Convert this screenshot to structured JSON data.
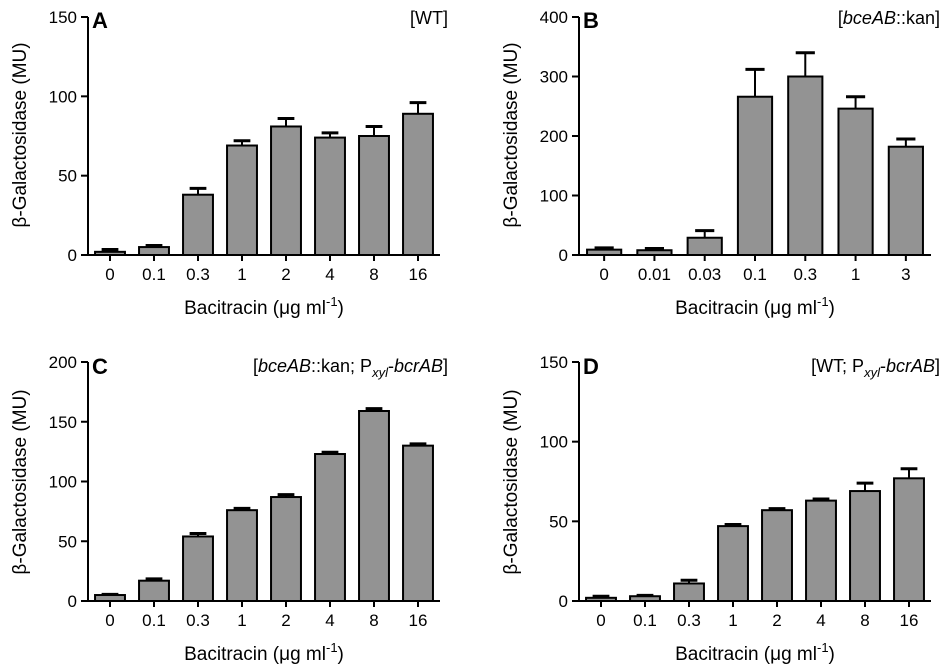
{
  "chart_data": [
    {
      "type": "bar",
      "panel": "A",
      "condition_label": "[WT]",
      "categories": [
        "0",
        "0.1",
        "0.3",
        "1",
        "2",
        "4",
        "8",
        "16"
      ],
      "values": [
        2,
        5,
        38,
        69,
        81,
        74,
        75,
        89
      ],
      "errors": [
        1.5,
        1,
        4,
        3,
        5,
        3,
        6,
        7
      ],
      "ylim": [
        0,
        150
      ],
      "yticks": [
        0,
        50,
        100,
        150
      ],
      "ylabel": "β-Galactosidase (MU)",
      "xlabel": "Bacitracin (μg ml",
      "xlabel_sup": "-1",
      "xlabel_end": ")",
      "bar_color": "#939393"
    },
    {
      "type": "bar",
      "panel": "B",
      "condition_label": "[bceAB::kan]",
      "categories": [
        "0",
        "0.01",
        "0.03",
        "0.1",
        "0.3",
        "1",
        "3"
      ],
      "values": [
        9,
        8,
        29,
        266,
        300,
        246,
        182
      ],
      "errors": [
        3,
        3,
        12,
        46,
        40,
        20,
        13
      ],
      "ylim": [
        0,
        400
      ],
      "yticks": [
        0,
        100,
        200,
        300,
        400
      ],
      "ylabel": "β-Galactosidase (MU)",
      "xlabel": "Bacitracin (μg ml",
      "xlabel_sup": "-1",
      "xlabel_end": ")",
      "bar_color": "#939393"
    },
    {
      "type": "bar",
      "panel": "C",
      "condition_label": "[bceAB::kan; Pxyl-bcrAB]",
      "categories": [
        "0",
        "0.1",
        "0.3",
        "1",
        "2",
        "4",
        "8",
        "16"
      ],
      "values": [
        5,
        17,
        54,
        76,
        87,
        123,
        159,
        130
      ],
      "errors": [
        0.5,
        1.5,
        2.5,
        1.5,
        2,
        1.5,
        2,
        1.5
      ],
      "ylim": [
        0,
        200
      ],
      "yticks": [
        0,
        50,
        100,
        150,
        200
      ],
      "ylabel": "β-Galactosidase (MU)",
      "xlabel": "Bacitracin (μg ml",
      "xlabel_sup": "-1",
      "xlabel_end": ")",
      "bar_color": "#939393"
    },
    {
      "type": "bar",
      "panel": "D",
      "condition_label": "[WT; Pxyl-bcrAB]",
      "categories": [
        "0",
        "0.1",
        "0.3",
        "1",
        "2",
        "4",
        "8",
        "16"
      ],
      "values": [
        2,
        3,
        11,
        47,
        57,
        63,
        69,
        77
      ],
      "errors": [
        1,
        0.5,
        2,
        1,
        1,
        1,
        5,
        6
      ],
      "ylim": [
        0,
        150
      ],
      "yticks": [
        0,
        50,
        100,
        150
      ],
      "ylabel": "β-Galactosidase (MU)",
      "xlabel": "Bacitracin (μg ml",
      "xlabel_sup": "-1",
      "xlabel_end": ")",
      "bar_color": "#939393"
    }
  ]
}
